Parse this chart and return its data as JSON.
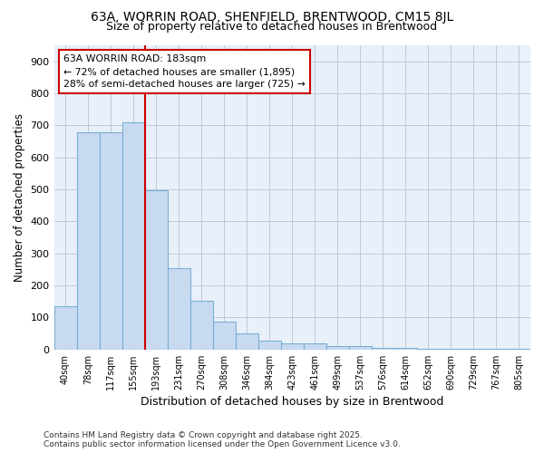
{
  "title1": "63A, WORRIN ROAD, SHENFIELD, BRENTWOOD, CM15 8JL",
  "title2": "Size of property relative to detached houses in Brentwood",
  "xlabel": "Distribution of detached houses by size in Brentwood",
  "ylabel": "Number of detached properties",
  "categories": [
    "40sqm",
    "78sqm",
    "117sqm",
    "155sqm",
    "193sqm",
    "231sqm",
    "270sqm",
    "308sqm",
    "346sqm",
    "384sqm",
    "423sqm",
    "461sqm",
    "499sqm",
    "537sqm",
    "576sqm",
    "614sqm",
    "652sqm",
    "690sqm",
    "729sqm",
    "767sqm",
    "805sqm"
  ],
  "values": [
    135,
    678,
    678,
    710,
    497,
    255,
    153,
    87,
    50,
    28,
    18,
    18,
    10,
    10,
    5,
    5,
    3,
    3,
    2,
    2,
    2
  ],
  "bar_color": "#c8daf0",
  "bar_edge_color": "#7aafd4",
  "annotation_text": "63A WORRIN ROAD: 183sqm\n← 72% of detached houses are smaller (1,895)\n28% of semi-detached houses are larger (725) →",
  "annotation_box_color": "#ffffff",
  "annotation_box_edge": "#cc0000",
  "vline_color": "#cc0000",
  "background_color": "#ffffff",
  "plot_bg_color": "#e8f0fa",
  "grid_color": "#c0c8d8",
  "footnote": "Contains HM Land Registry data © Crown copyright and database right 2025.\nContains public sector information licensed under the Open Government Licence v3.0.",
  "ylim": [
    0,
    950
  ],
  "yticks": [
    0,
    100,
    200,
    300,
    400,
    500,
    600,
    700,
    800,
    900
  ],
  "vline_index": 4
}
